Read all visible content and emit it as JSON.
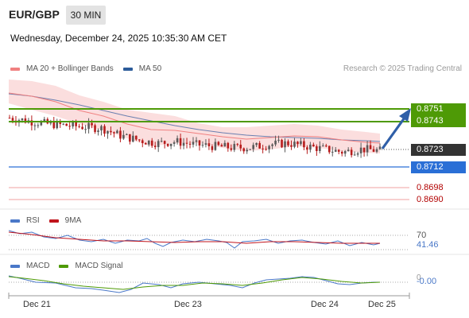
{
  "header": {
    "symbol": "EUR/GBP",
    "timeframe": "30 MIN",
    "datetime": "Wednesday, December 24, 2025 10:35:30 AM CET"
  },
  "legend": {
    "items": [
      {
        "label": "MA 20 + Bollinger Bands",
        "color": "#f08080"
      },
      {
        "label": "MA 50",
        "color": "#2c5c9a"
      }
    ],
    "credit": "Research © 2025 Trading Central"
  },
  "colors": {
    "resistance": "#4e9a06",
    "pivot": "#2a6fd6",
    "support": "#b20000",
    "current": "#333333",
    "candle_up": "#b71c1c",
    "bollinger_fill": "#fbdada",
    "ma20": "#f08080",
    "ma50": "#2c5c9a"
  },
  "price_labels": {
    "r2": "0.8751",
    "r1": "0.8743",
    "current": "0.8723",
    "pivot": "0.8712",
    "s1": "0.8698",
    "s2": "0.8690"
  },
  "rsi": {
    "legend": [
      {
        "label": "RSI",
        "color": "#4a78c8"
      },
      {
        "label": "9MA",
        "color": "#c0141c"
      }
    ],
    "level_label": "70",
    "value_label": "41.46"
  },
  "macd": {
    "legend": [
      {
        "label": "MACD",
        "color": "#4a78c8"
      },
      {
        "label": "MACD Signal",
        "color": "#4e9a06"
      }
    ],
    "level_label": "0",
    "value_label": "-0.00"
  },
  "x_axis": {
    "labels": [
      "Dec 21",
      "Dec 23",
      "Dec 24",
      "Dec 25"
    ]
  },
  "chart_data": {
    "type": "line",
    "title": "EUR/GBP",
    "series": [
      {
        "name": "EUR/GBP",
        "x": [
          0,
          5,
          10,
          15,
          20,
          25,
          30,
          35,
          40,
          45,
          50,
          55,
          60,
          65,
          70,
          75,
          80,
          85,
          90,
          95,
          100
        ],
        "values": [
          0.8745,
          0.8743,
          0.8741,
          0.874,
          0.8739,
          0.8738,
          0.8733,
          0.873,
          0.8728,
          0.8729,
          0.8727,
          0.8726,
          0.8725,
          0.8725,
          0.8727,
          0.8728,
          0.8726,
          0.8724,
          0.8722,
          0.8724,
          0.8723
        ]
      },
      {
        "name": "MA 50",
        "x": [
          0,
          10,
          20,
          30,
          40,
          50,
          60,
          70,
          80,
          90,
          100
        ],
        "values": [
          0.8746,
          0.8744,
          0.8741,
          0.8738,
          0.8735,
          0.8732,
          0.873,
          0.8729,
          0.8728,
          0.8727,
          0.8726
        ]
      }
    ],
    "levels": [
      {
        "name": "r2",
        "value": 0.8751
      },
      {
        "name": "r1",
        "value": 0.8743
      },
      {
        "name": "current",
        "value": 0.8723
      },
      {
        "name": "pivot",
        "value": 0.8712
      },
      {
        "name": "s1",
        "value": 0.8698
      },
      {
        "name": "s2",
        "value": 0.869
      }
    ],
    "ylim": [
      0.8685,
      0.876
    ],
    "forecast_target": 0.8743
  }
}
